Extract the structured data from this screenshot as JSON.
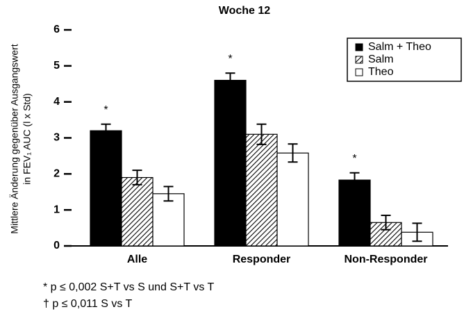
{
  "chart_data": {
    "type": "bar",
    "title": "Woche 12",
    "y_label": [
      "Mittlere Änderung gegenüber Ausgangswert",
      "in FEV₁ AUC (l x Std)"
    ],
    "categories": [
      "Alle",
      "Responder",
      "Non-Responder"
    ],
    "series": [
      {
        "name": "Salm + Theo",
        "color": "#000000",
        "values": [
          3.2,
          4.6,
          1.83
        ],
        "errors": [
          0.18,
          0.2,
          0.2
        ]
      },
      {
        "name": "Salm",
        "color": "#000000",
        "pattern": "hatch",
        "values": [
          1.9,
          3.1,
          0.65
        ],
        "errors": [
          0.2,
          0.28,
          0.2
        ]
      },
      {
        "name": "Theo",
        "color": "#ffffff",
        "values": [
          1.45,
          2.58,
          0.38
        ],
        "errors": [
          0.2,
          0.25,
          0.25
        ]
      }
    ],
    "annotations": [
      "*",
      "*",
      "*"
    ],
    "footnotes": [
      "* p ≤ 0,002 S+T vs S und S+T vs T",
      "† p ≤ 0,011 S vs T"
    ],
    "ylim": [
      0,
      6
    ],
    "yticks": [
      0,
      1,
      2,
      3,
      4,
      5,
      6
    ],
    "grid": false,
    "legend": "upper right"
  }
}
